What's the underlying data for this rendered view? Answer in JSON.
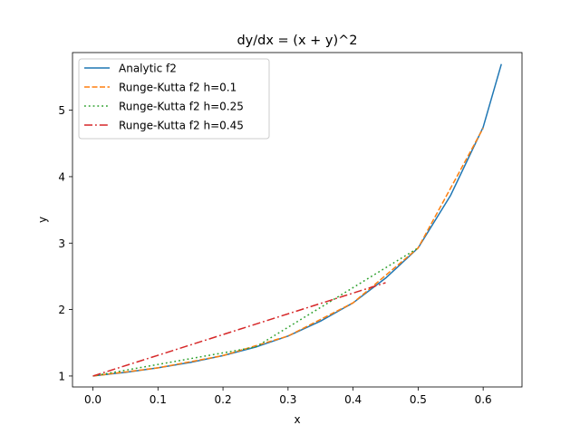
{
  "chart_data": {
    "type": "line",
    "title": "dy/dx = (x + y)^2",
    "xlabel": "x",
    "ylabel": "y",
    "xlim": [
      -0.0314,
      0.6597
    ],
    "ylim": [
      0.8352,
      5.8676
    ],
    "xticks": [
      0.0,
      0.1,
      0.2,
      0.3,
      0.4,
      0.5,
      0.6
    ],
    "xtick_labels": [
      "0.0",
      "0.1",
      "0.2",
      "0.3",
      "0.4",
      "0.5",
      "0.6"
    ],
    "yticks": [
      1,
      2,
      3,
      4,
      5
    ],
    "ytick_labels": [
      "1",
      "2",
      "3",
      "4",
      "5"
    ],
    "grid": false,
    "legend_position": "upper-left",
    "series": [
      {
        "name": "Analytic f2",
        "color": "#1f77b4",
        "style": "solid",
        "x": [
          0.0,
          0.05,
          0.1,
          0.15,
          0.2,
          0.25,
          0.3,
          0.35,
          0.4,
          0.45,
          0.5,
          0.55,
          0.6,
          0.628
        ],
        "y": [
          1.0,
          1.0553,
          1.1228,
          1.2053,
          1.3073,
          1.4356,
          1.6017,
          1.8267,
          2.1013,
          2.4731,
          2.927,
          3.72,
          4.745,
          5.695
        ]
      },
      {
        "name": "Runge-Kutta f2 h=0.1",
        "color": "#ff7f0e",
        "style": "dashed",
        "x": [
          0.0,
          0.1,
          0.2,
          0.3,
          0.4,
          0.5,
          0.6
        ],
        "y": [
          1.0,
          1.1228,
          1.3073,
          1.6017,
          2.1013,
          2.927,
          4.73
        ]
      },
      {
        "name": "Runge-Kutta f2 h=0.25",
        "color": "#2ca02c",
        "style": "dotted",
        "x": [
          0.0,
          0.25,
          0.5
        ],
        "y": [
          1.0,
          1.4356,
          2.927
        ]
      },
      {
        "name": "Runge-Kutta f2 h=0.45",
        "color": "#d62728",
        "style": "dashdot",
        "x": [
          0.0,
          0.45
        ],
        "y": [
          1.0,
          2.404
        ]
      }
    ]
  }
}
